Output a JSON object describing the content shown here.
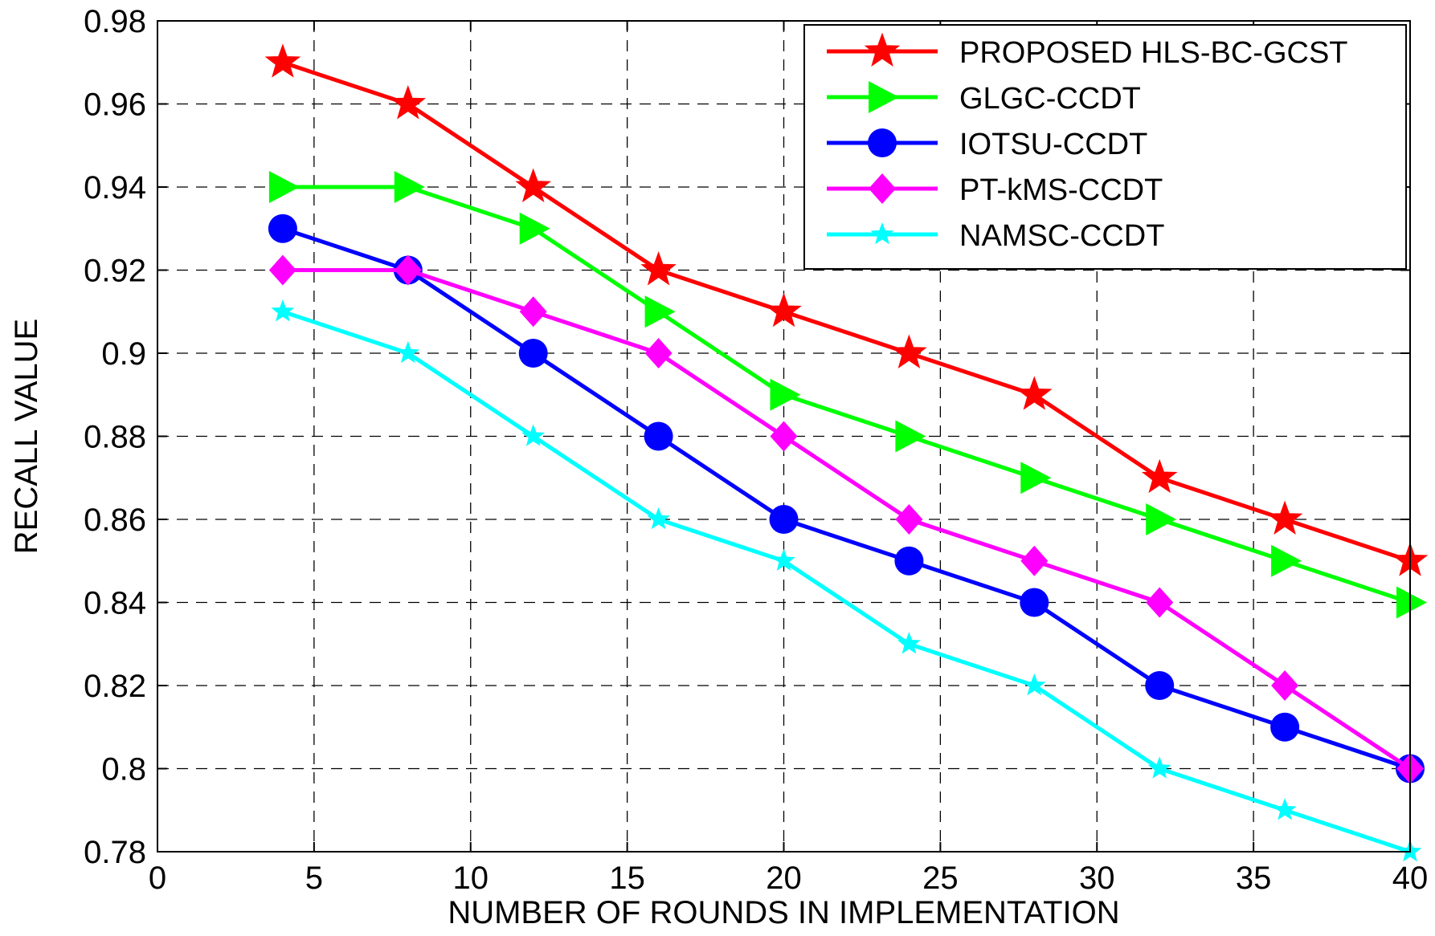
{
  "chart_data": {
    "type": "line",
    "title": "",
    "xlabel": "NUMBER OF ROUNDS IN IMPLEMENTATION",
    "ylabel": "RECALL VALUE",
    "xlim": [
      0,
      40
    ],
    "ylim": [
      0.78,
      0.98
    ],
    "xticks": [
      0,
      5,
      10,
      15,
      20,
      25,
      30,
      35,
      40
    ],
    "xtick_labels": [
      "0",
      "5",
      "10",
      "15",
      "20",
      "25",
      "30",
      "35",
      "40"
    ],
    "yticks": [
      0.78,
      0.8,
      0.82,
      0.84,
      0.86,
      0.88,
      0.9,
      0.92,
      0.94,
      0.96,
      0.98
    ],
    "ytick_labels": [
      "0.78",
      "0.8",
      "0.82",
      "0.84",
      "0.86",
      "0.88",
      "0.9",
      "0.92",
      "0.94",
      "0.96",
      "0.98"
    ],
    "grid": true,
    "legend_position": "top-right",
    "x": [
      4,
      8,
      12,
      16,
      20,
      24,
      28,
      32,
      36,
      40
    ],
    "series": [
      {
        "name": "PROPOSED HLS-BC-GCST",
        "color": "#ff0000",
        "marker": "star",
        "values": [
          0.97,
          0.96,
          0.94,
          0.92,
          0.91,
          0.9,
          0.89,
          0.87,
          0.86,
          0.85
        ]
      },
      {
        "name": "GLGC-CCDT",
        "color": "#00ff00",
        "marker": "triangle-right",
        "values": [
          0.94,
          0.94,
          0.93,
          0.91,
          0.89,
          0.88,
          0.87,
          0.86,
          0.85,
          0.84
        ]
      },
      {
        "name": "IOTSU-CCDT",
        "color": "#0000ff",
        "marker": "circle",
        "values": [
          0.93,
          0.92,
          0.9,
          0.88,
          0.86,
          0.85,
          0.84,
          0.82,
          0.81,
          0.8
        ]
      },
      {
        "name": "PT-kMS-CCDT",
        "color": "#ff00ff",
        "marker": "diamond",
        "values": [
          0.92,
          0.92,
          0.91,
          0.9,
          0.88,
          0.86,
          0.85,
          0.84,
          0.82,
          0.8
        ]
      },
      {
        "name": "NAMSC-CCDT",
        "color": "#00ffff",
        "marker": "small-star",
        "values": [
          0.91,
          0.9,
          0.88,
          0.86,
          0.85,
          0.83,
          0.82,
          0.8,
          0.79,
          0.78
        ]
      }
    ]
  }
}
